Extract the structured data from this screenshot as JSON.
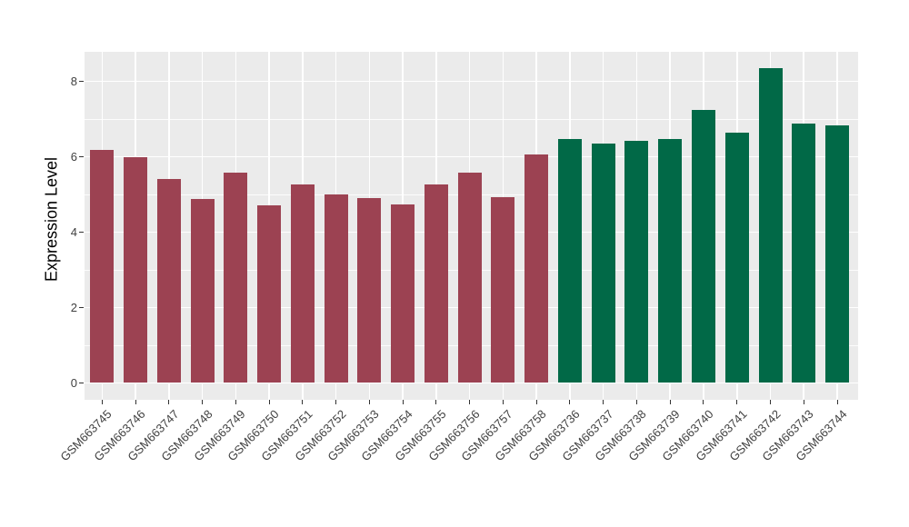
{
  "chart_data": {
    "type": "bar",
    "title": "",
    "xlabel": "",
    "ylabel": "Expression Level",
    "categories": [
      "GSM663745",
      "GSM663746",
      "GSM663747",
      "GSM663748",
      "GSM663749",
      "GSM663750",
      "GSM663751",
      "GSM663752",
      "GSM663753",
      "GSM663754",
      "GSM663755",
      "GSM663756",
      "GSM663757",
      "GSM663758",
      "GSM663736",
      "GSM663737",
      "GSM663738",
      "GSM663739",
      "GSM663740",
      "GSM663741",
      "GSM663742",
      "GSM663743",
      "GSM663744"
    ],
    "values": [
      6.18,
      5.98,
      5.42,
      4.87,
      5.58,
      4.72,
      5.26,
      4.99,
      4.9,
      4.74,
      5.26,
      5.57,
      4.93,
      6.06,
      6.46,
      6.34,
      6.43,
      6.48,
      7.23,
      6.63,
      8.36,
      6.88,
      6.82
    ],
    "groups": [
      "A",
      "A",
      "A",
      "A",
      "A",
      "A",
      "A",
      "A",
      "A",
      "A",
      "A",
      "A",
      "A",
      "A",
      "B",
      "B",
      "B",
      "B",
      "B",
      "B",
      "B",
      "B",
      "B"
    ],
    "group_colors": {
      "A": "#9C4252",
      "B": "#016947"
    },
    "yticks": [
      0,
      2,
      4,
      6,
      8
    ],
    "minor_yticks": [
      1,
      3,
      5,
      7
    ],
    "ylim": [
      -0.45,
      8.78
    ],
    "grid": true,
    "legend": false,
    "panel_bg": "#EBEBEB",
    "grid_color": "#FFFFFF",
    "axis_text_color": "#404040"
  }
}
